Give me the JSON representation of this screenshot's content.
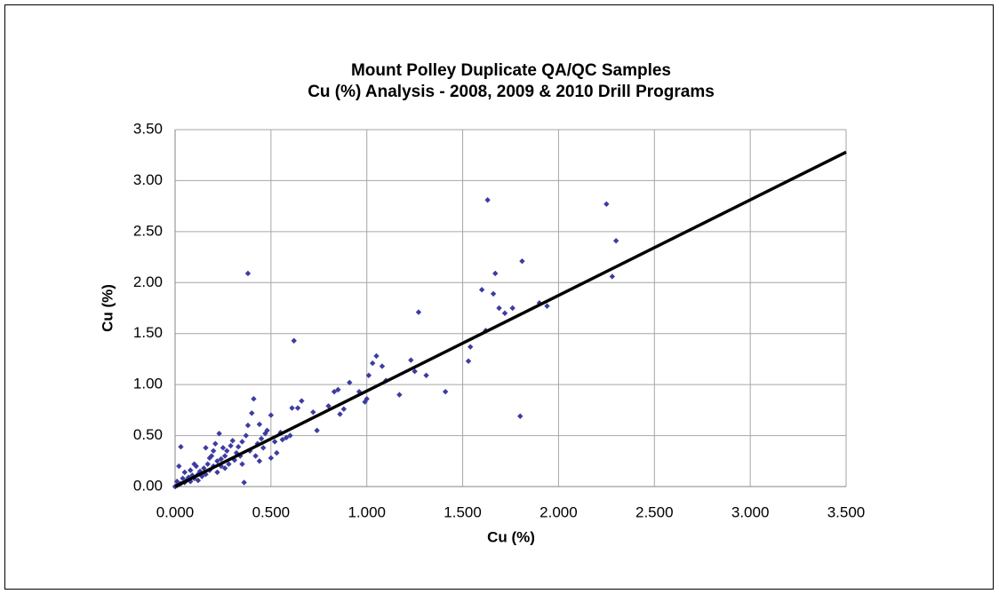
{
  "chart_data": {
    "type": "scatter",
    "title": "Mount Polley Duplicate QA/QC Samples",
    "subtitle": "Cu (%) Analysis - 2008, 2009 & 2010 Drill Programs",
    "x_label": "Cu (%)",
    "y_label": "Cu (%)",
    "xlim": [
      0,
      3.5
    ],
    "ylim": [
      0,
      3.5
    ],
    "xticks": [
      {
        "value": 0,
        "label": "0.000"
      },
      {
        "value": 0.5,
        "label": "0.500"
      },
      {
        "value": 1,
        "label": "1.000"
      },
      {
        "value": 1.5,
        "label": "1.500"
      },
      {
        "value": 2,
        "label": "2.000"
      },
      {
        "value": 2.5,
        "label": "2.500"
      },
      {
        "value": 3,
        "label": "3.000"
      },
      {
        "value": 3.5,
        "label": "3.500"
      }
    ],
    "yticks": [
      {
        "value": 0,
        "label": "0.00"
      },
      {
        "value": 0.5,
        "label": "0.50"
      },
      {
        "value": 1,
        "label": "1.00"
      },
      {
        "value": 1.5,
        "label": "1.50"
      },
      {
        "value": 2,
        "label": "2.00"
      },
      {
        "value": 2.5,
        "label": "2.50"
      },
      {
        "value": 3,
        "label": "3.00"
      },
      {
        "value": 3.5,
        "label": "3.50"
      }
    ],
    "grid": true,
    "series": [
      {
        "type": "scatter",
        "color": "#3c3ca0",
        "x": [
          0.38,
          0.62,
          1.63,
          2.25,
          2.3,
          2.28,
          1.81,
          1.67,
          1.6,
          1.66,
          1.69,
          1.72,
          1.76,
          1.9,
          1.94,
          1.62,
          1.8,
          1.53,
          1.54,
          1.27,
          1.41,
          1.23,
          1.25,
          1.31,
          1.17,
          1.05,
          1.08,
          1.03,
          1.1,
          1.01,
          0.99,
          1.0,
          0.96,
          0.91,
          0.85,
          0.83,
          0.8,
          0.88,
          0.86,
          0.72,
          0.74,
          0.66,
          0.61,
          0.64,
          0.58,
          0.55,
          0.52,
          0.5,
          0.48,
          0.47,
          0.45,
          0.44,
          0.43,
          0.41,
          0.4,
          0.38,
          0.37,
          0.36,
          0.35,
          0.33,
          0.32,
          0.3,
          0.29,
          0.27,
          0.26,
          0.25,
          0.24,
          0.23,
          0.22,
          0.21,
          0.2,
          0.19,
          0.18,
          0.17,
          0.16,
          0.15,
          0.14,
          0.13,
          0.12,
          0.11,
          0.1,
          0.09,
          0.08,
          0.07,
          0.06,
          0.05,
          0.04,
          0.03,
          0.03,
          0.02,
          0.02,
          0.01,
          0.01,
          0.0,
          0.28,
          0.31,
          0.34,
          0.22,
          0.18,
          0.26,
          0.12,
          0.16,
          0.24,
          0.39,
          0.42,
          0.46,
          0.5,
          0.53,
          0.56,
          0.6,
          0.05,
          0.08,
          0.1,
          0.2,
          0.35,
          0.44
        ],
        "values": [
          2.09,
          1.43,
          2.81,
          2.77,
          2.41,
          2.06,
          2.21,
          2.09,
          1.93,
          1.89,
          1.75,
          1.7,
          1.75,
          1.8,
          1.77,
          1.53,
          0.69,
          1.23,
          1.37,
          1.71,
          0.93,
          1.24,
          1.13,
          1.09,
          0.9,
          1.28,
          1.18,
          1.21,
          1.04,
          1.09,
          0.83,
          0.86,
          0.93,
          1.02,
          0.95,
          0.93,
          0.79,
          0.76,
          0.71,
          0.73,
          0.55,
          0.84,
          0.77,
          0.77,
          0.48,
          0.53,
          0.44,
          0.7,
          0.55,
          0.52,
          0.47,
          0.61,
          0.42,
          0.86,
          0.72,
          0.6,
          0.5,
          0.04,
          0.44,
          0.39,
          0.33,
          0.45,
          0.4,
          0.35,
          0.3,
          0.38,
          0.27,
          0.52,
          0.25,
          0.42,
          0.2,
          0.3,
          0.16,
          0.22,
          0.38,
          0.18,
          0.1,
          0.15,
          0.12,
          0.2,
          0.08,
          0.11,
          0.05,
          0.09,
          0.06,
          0.04,
          0.08,
          0.39,
          0.03,
          0.2,
          0.02,
          0.05,
          0.01,
          0.0,
          0.22,
          0.26,
          0.3,
          0.14,
          0.28,
          0.18,
          0.06,
          0.12,
          0.2,
          0.35,
          0.3,
          0.38,
          0.28,
          0.33,
          0.46,
          0.5,
          0.14,
          0.16,
          0.22,
          0.35,
          0.22,
          0.25
        ]
      },
      {
        "type": "line",
        "color": "#000000",
        "x": [
          0,
          3.5
        ],
        "values": [
          0,
          3.28
        ]
      }
    ]
  }
}
